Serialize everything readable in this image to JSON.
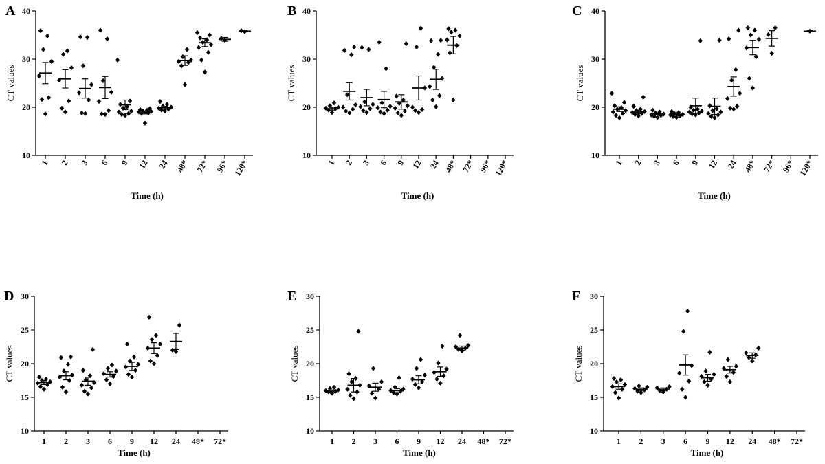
{
  "chart_data": [
    {
      "panel": "A",
      "type": "scatter",
      "xlabel": "Time (h)",
      "ylabel": "CT values",
      "ylim": [
        10,
        40
      ],
      "yticks": [
        10,
        20,
        30,
        40
      ],
      "categories": [
        "1",
        "2",
        "3",
        "6",
        "9",
        "12",
        "24",
        "48*",
        "72*",
        "96*",
        "120*"
      ],
      "points": [
        [
          18.6,
          21.6,
          22.0,
          26.5,
          29.5,
          32.0,
          34.8,
          35.9
        ],
        [
          19.0,
          19.8,
          21.3,
          25.6,
          28.2,
          31.0,
          31.7
        ],
        [
          18.7,
          18.8,
          21.5,
          23.0,
          24.7,
          28.6,
          34.5,
          34.6
        ],
        [
          18.5,
          18.6,
          19.3,
          21.2,
          23.1,
          25.5,
          34.2,
          36.0
        ],
        [
          18.3,
          18.5,
          18.7,
          19.0,
          19.2,
          19.8,
          20.1,
          20.6,
          21.3,
          29.8
        ],
        [
          16.7,
          18.7,
          18.8,
          19.0,
          19.1,
          19.2,
          19.4,
          19.5,
          19.7
        ],
        [
          19.2,
          19.4,
          19.6,
          19.8,
          20.0,
          20.2,
          20.6,
          21.2
        ],
        [
          24.7,
          28.6,
          29.3,
          29.5,
          29.8,
          30.5,
          32.0
        ],
        [
          27.3,
          29.8,
          31.4,
          32.4,
          33.0,
          33.5,
          34.0,
          34.4,
          35.0,
          35.5
        ],
        [
          33.9,
          34.3
        ],
        [
          35.7,
          35.9
        ]
      ],
      "mean": [
        27.1,
        25.9,
        23.9,
        24.1,
        20.5,
        18.9,
        19.9,
        29.7,
        33.4,
        34.1,
        35.8
      ],
      "sem": [
        2.2,
        1.9,
        2.0,
        2.3,
        1.0,
        0.3,
        0.3,
        1.0,
        0.8,
        0.4,
        0.1
      ]
    },
    {
      "panel": "B",
      "type": "scatter",
      "xlabel": "Time (h)",
      "ylabel": "CT values",
      "ylim": [
        10,
        40
      ],
      "yticks": [
        10,
        20,
        30,
        40
      ],
      "categories": [
        "1",
        "2",
        "3",
        "6",
        "9",
        "12",
        "24",
        "48*",
        "72*",
        "96*",
        "120*"
      ],
      "points": [
        [
          18.9,
          19.4,
          19.7,
          19.8,
          20.0,
          20.3,
          20.9
        ],
        [
          18.8,
          19.2,
          19.6,
          20.0,
          20.5,
          22.6,
          30.9,
          31.8,
          32.5
        ],
        [
          18.9,
          19.3,
          19.7,
          20.1,
          20.6,
          21.1,
          32.0,
          32.4
        ],
        [
          18.7,
          19.0,
          19.4,
          19.9,
          20.2,
          20.9,
          28.0,
          33.5
        ],
        [
          18.3,
          18.8,
          19.2,
          19.8,
          20.3,
          20.8,
          21.5,
          22.3,
          33.2
        ],
        [
          18.9,
          19.3,
          19.5,
          20.0,
          24.0,
          32.5,
          36.4
        ],
        [
          20.1,
          21.5,
          22.4,
          24.3,
          26.0,
          28.3,
          31.0,
          33.8,
          33.9
        ],
        [
          21.5,
          31.3,
          32.8,
          34.0,
          34.8,
          35.6,
          36.0,
          36.3
        ],
        [],
        [],
        []
      ],
      "mean": [
        19.7,
        23.3,
        22.0,
        21.6,
        21.1,
        24.0,
        25.8,
        32.9,
        null,
        null,
        null
      ],
      "sem": [
        0.3,
        1.8,
        1.7,
        1.7,
        1.5,
        2.5,
        2.1,
        1.8,
        null,
        null,
        null
      ]
    },
    {
      "panel": "C",
      "type": "scatter",
      "xlabel": "Time (h)",
      "ylabel": "CT values",
      "ylim": [
        10,
        40
      ],
      "yticks": [
        10,
        20,
        30,
        40
      ],
      "categories": [
        "1",
        "2",
        "3",
        "6",
        "9",
        "12",
        "24",
        "48*",
        "72*",
        "96*",
        "120*"
      ],
      "points": [
        [
          17.8,
          18.3,
          18.7,
          19.0,
          19.3,
          19.6,
          19.9,
          20.3,
          21.0,
          22.9
        ],
        [
          18.2,
          18.5,
          18.7,
          18.9,
          19.1,
          19.3,
          19.6,
          20.2,
          22.1
        ],
        [
          17.9,
          18.1,
          18.3,
          18.4,
          18.6,
          18.8,
          19.0,
          19.4
        ],
        [
          17.9,
          18.1,
          18.2,
          18.4,
          18.5,
          18.7,
          18.9,
          19.1
        ],
        [
          18.4,
          18.6,
          18.8,
          19.0,
          19.2,
          19.4,
          19.6,
          20.0,
          33.8
        ],
        [
          17.8,
          18.1,
          18.4,
          18.7,
          19.0,
          19.3,
          19.7,
          20.3,
          33.9
        ],
        [
          19.6,
          19.8,
          20.2,
          21.8,
          22.9,
          25.6,
          27.8,
          34.2,
          36.0
        ],
        [
          24.0,
          26.0,
          30.5,
          32.3,
          34.1,
          35.0,
          36.0,
          36.5
        ],
        [
          31.2,
          35.1,
          36.5
        ],
        [],
        [
          35.8
        ]
      ],
      "mean": [
        19.6,
        19.0,
        18.6,
        18.5,
        20.3,
        20.2,
        24.3,
        32.4,
        34.3,
        null,
        35.8
      ],
      "sem": [
        0.5,
        0.4,
        0.2,
        0.2,
        1.6,
        1.7,
        2.0,
        1.5,
        1.6,
        null,
        0.1
      ]
    },
    {
      "panel": "D",
      "type": "scatter",
      "xlabel": "Time (h)",
      "ylabel": "CT values",
      "ylim": [
        10,
        30
      ],
      "yticks": [
        10,
        15,
        20,
        25,
        30
      ],
      "categories": [
        "1",
        "2",
        "3",
        "6",
        "9",
        "12",
        "24",
        "48*",
        "72*"
      ],
      "points": [
        [
          16.2,
          16.6,
          16.9,
          17.1,
          17.3,
          17.5,
          17.7,
          18.0
        ],
        [
          15.8,
          16.5,
          17.5,
          18.0,
          18.3,
          18.9,
          19.9,
          20.9,
          21.0
        ],
        [
          15.5,
          15.9,
          16.4,
          16.8,
          17.2,
          17.6,
          18.2,
          19.0,
          22.1
        ],
        [
          17.0,
          17.6,
          18.1,
          18.5,
          18.9,
          19.3,
          19.8
        ],
        [
          18.0,
          18.4,
          19.0,
          19.5,
          19.9,
          20.4,
          21.0,
          22.9
        ],
        [
          20.0,
          20.4,
          21.2,
          22.3,
          22.9,
          23.6,
          24.2,
          26.9
        ],
        [
          21.8,
          22.0,
          25.7
        ],
        [],
        []
      ],
      "mean": [
        17.2,
        18.2,
        17.4,
        18.4,
        19.6,
        22.3,
        23.3,
        null,
        null
      ],
      "sem": [
        0.3,
        0.6,
        0.6,
        0.4,
        0.6,
        0.8,
        1.2,
        null,
        null
      ]
    },
    {
      "panel": "E",
      "type": "scatter",
      "xlabel": "Time (h)",
      "ylabel": "CT values",
      "ylim": [
        10,
        30
      ],
      "yticks": [
        10,
        15,
        20,
        25,
        30
      ],
      "categories": [
        "1",
        "2",
        "3",
        "6",
        "9",
        "12",
        "24",
        "48*",
        "72*"
      ],
      "points": [
        [
          15.6,
          15.8,
          15.9,
          16.0,
          16.1,
          16.3,
          16.5
        ],
        [
          14.8,
          15.3,
          15.8,
          16.2,
          16.8,
          17.3,
          17.8,
          18.5,
          24.8
        ],
        [
          14.9,
          15.6,
          16.2,
          16.7,
          17.3,
          19.3
        ],
        [
          15.5,
          15.7,
          15.9,
          16.0,
          16.2,
          16.5,
          17.9
        ],
        [
          16.4,
          16.9,
          17.3,
          17.7,
          18.3,
          19.3,
          20.6
        ],
        [
          17.1,
          17.7,
          18.2,
          18.7,
          19.2,
          20.1,
          22.6
        ],
        [
          21.9,
          22.1,
          22.3,
          22.5,
          22.7,
          24.2
        ],
        [],
        []
      ],
      "mean": [
        15.9,
        16.8,
        16.5,
        16.0,
        17.6,
        18.8,
        22.3,
        null,
        null
      ],
      "sem": [
        0.2,
        1.0,
        0.6,
        0.3,
        0.6,
        0.7,
        0.3,
        null,
        null
      ]
    },
    {
      "panel": "F",
      "type": "scatter",
      "xlabel": "Time (h)",
      "ylabel": "CT values",
      "ylim": [
        10,
        30
      ],
      "yticks": [
        10,
        15,
        20,
        25,
        30
      ],
      "categories": [
        "1",
        "2",
        "3",
        "6",
        "9",
        "12",
        "24",
        "48*",
        "72*"
      ],
      "points": [
        [
          14.9,
          15.7,
          16.2,
          16.6,
          16.9,
          17.3,
          17.6,
          17.8
        ],
        [
          15.7,
          15.9,
          16.1,
          16.3,
          16.5,
          16.7
        ],
        [
          15.8,
          16.0,
          16.2,
          16.4,
          16.6
        ],
        [
          15.0,
          16.2,
          17.4,
          18.6,
          19.7,
          24.8,
          27.8
        ],
        [
          16.8,
          17.3,
          17.7,
          18.1,
          18.4,
          18.9,
          21.7
        ],
        [
          17.3,
          18.1,
          18.7,
          19.3,
          19.6,
          20.6
        ],
        [
          20.4,
          20.9,
          21.3,
          21.6,
          22.3
        ]
      ],
      "mean": [
        16.6,
        16.2,
        16.2,
        19.8,
        17.9,
        19.1,
        21.2,
        null,
        null
      ],
      "sem": [
        0.4,
        0.2,
        0.2,
        1.5,
        0.5,
        0.5,
        0.4,
        null,
        null
      ]
    }
  ]
}
